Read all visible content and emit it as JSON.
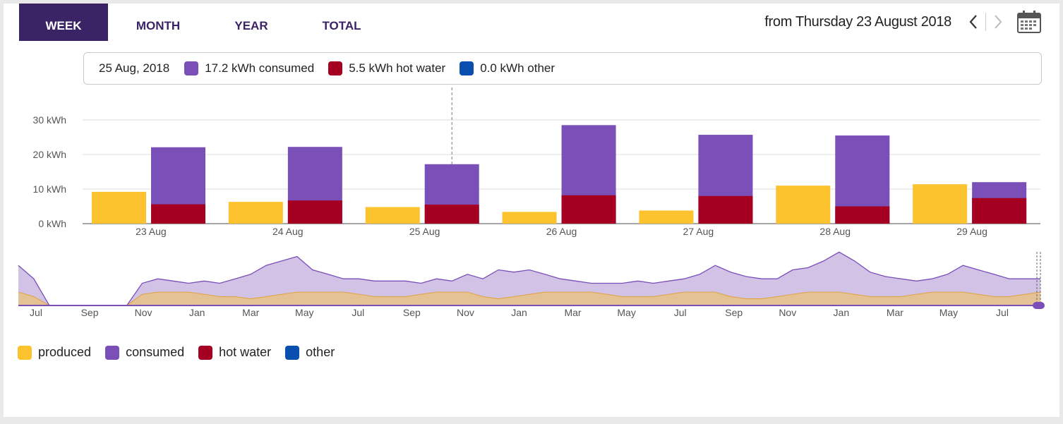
{
  "tabs": [
    "WEEK",
    "MONTH",
    "YEAR",
    "TOTAL"
  ],
  "active_tab": 0,
  "nav": {
    "from_text": "from Thursday 23 August 2018",
    "prev_icon": "chevron-left-icon",
    "next_icon": "chevron-right-icon",
    "calendar_icon": "calendar-icon"
  },
  "tooltip": {
    "date": "25 Aug, 2018",
    "consumed": "17.2 kWh consumed",
    "hot_water": "5.5 kWh hot water",
    "other": "0.0 kWh other"
  },
  "colors": {
    "produced": "#fdc32f",
    "consumed": "#7b4fb8",
    "hot_water": "#a50021",
    "other": "#0a4fb0",
    "tab_active": "#3b2465"
  },
  "legend": [
    "produced",
    "consumed",
    "hot water",
    "other"
  ],
  "chart_data": [
    {
      "type": "bar",
      "categories": [
        "23 Aug",
        "24 Aug",
        "25 Aug",
        "26 Aug",
        "27 Aug",
        "28 Aug",
        "29 Aug"
      ],
      "series": [
        {
          "name": "produced",
          "values": [
            9.2,
            6.3,
            4.8,
            3.4,
            3.8,
            11.0,
            11.4
          ]
        },
        {
          "name": "consumed",
          "values": [
            22.1,
            22.2,
            17.2,
            28.5,
            25.7,
            25.5,
            12.0
          ]
        },
        {
          "name": "hot water",
          "values": [
            5.6,
            6.7,
            5.5,
            8.2,
            8.0,
            5.0,
            7.4
          ]
        },
        {
          "name": "other",
          "values": [
            0,
            0,
            0,
            0,
            0,
            0,
            0
          ]
        }
      ],
      "y_ticks": [
        "0 kWh",
        "10 kWh",
        "20 kWh",
        "30 kWh"
      ],
      "ylim": [
        0,
        30
      ],
      "grid": true,
      "highlight_category": "25 Aug"
    },
    {
      "type": "area",
      "x_ticks": [
        "Jul",
        "Sep",
        "Nov",
        "Jan",
        "Mar",
        "May",
        "Jul",
        "Sep",
        "Nov",
        "Jan",
        "Mar",
        "May",
        "Jul",
        "Sep",
        "Nov",
        "Jan",
        "Mar",
        "May",
        "Jul"
      ],
      "series": [
        {
          "name": "consumed",
          "values": [
            18,
            12,
            0,
            0,
            0,
            0,
            0,
            0,
            10,
            12,
            11,
            10,
            11,
            10,
            12,
            14,
            18,
            20,
            22,
            16,
            14,
            12,
            12,
            11,
            11,
            11,
            10,
            12,
            11,
            14,
            12,
            16,
            15,
            16,
            14,
            12,
            11,
            10,
            10,
            10,
            11,
            10,
            11,
            12,
            14,
            18,
            15,
            13,
            12,
            12,
            16,
            17,
            20,
            24,
            20,
            15,
            13,
            12,
            11,
            12,
            14,
            18,
            16,
            14,
            12,
            12,
            12
          ]
        },
        {
          "name": "produced",
          "values": [
            6,
            4,
            0,
            0,
            0,
            0,
            0,
            0,
            5,
            6,
            6,
            6,
            5,
            4,
            4,
            3,
            4,
            5,
            6,
            6,
            6,
            6,
            5,
            4,
            4,
            4,
            5,
            6,
            6,
            6,
            4,
            3,
            4,
            5,
            6,
            6,
            6,
            6,
            5,
            4,
            4,
            4,
            5,
            6,
            6,
            6,
            4,
            3,
            3,
            4,
            5,
            6,
            6,
            6,
            5,
            4,
            4,
            4,
            5,
            6,
            6,
            6,
            5,
            4,
            4,
            5,
            6
          ]
        }
      ]
    }
  ]
}
